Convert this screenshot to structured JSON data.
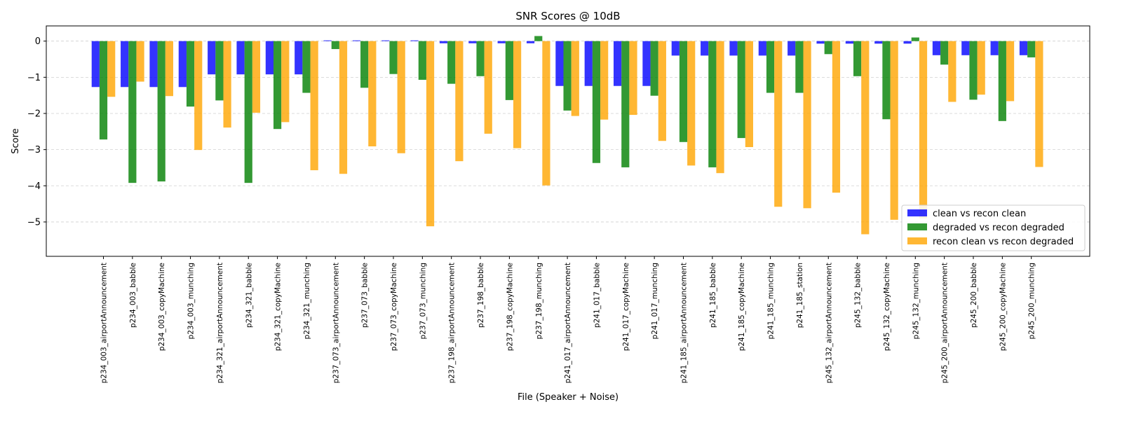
{
  "chart_data": {
    "type": "bar",
    "title": "SNR Scores @ 10dB",
    "xlabel": "File (Speaker + Noise)",
    "ylabel": "Score",
    "ylim": [
      -5.95,
      0.42
    ],
    "yticks": [
      0,
      -1,
      -2,
      -3,
      -4,
      -5
    ],
    "grid": "horizontal dashed",
    "legend_position": "lower right",
    "categories": [
      "p234_003_airportAnnouncement",
      "p234_003_babble",
      "p234_003_copyMachine",
      "p234_003_munching",
      "p234_321_airportAnnouncement",
      "p234_321_babble",
      "p234_321_copyMachine",
      "p234_321_munching",
      "p237_073_airportAnnouncement",
      "p237_073_babble",
      "p237_073_copyMachine",
      "p237_073_munching",
      "p237_198_airportAnnouncement",
      "p237_198_babble",
      "p237_198_copyMachine",
      "p237_198_munching",
      "p241_017_airportAnnouncement",
      "p241_017_babble",
      "p241_017_copyMachine",
      "p241_017_munching",
      "p241_185_airportAnnouncement",
      "p241_185_babble",
      "p241_185_copyMachine",
      "p241_185_munching",
      "p241_185_station",
      "p245_132_airportAnnouncement",
      "p245_132_babble",
      "p245_132_copyMachine",
      "p245_132_munching",
      "p245_200_airportAnnouncement",
      "p245_200_babble",
      "p245_200_copyMachine",
      "p245_200_munching"
    ],
    "series": [
      {
        "name": "clean vs recon clean",
        "color": "#0000ff",
        "values": [
          -1.27,
          -1.27,
          -1.27,
          -1.27,
          -0.92,
          -0.92,
          -0.92,
          -0.92,
          0.02,
          0.02,
          0.02,
          0.02,
          -0.06,
          -0.06,
          -0.06,
          -0.06,
          -1.24,
          -1.24,
          -1.24,
          -1.24,
          -0.4,
          -0.4,
          -0.4,
          -0.4,
          -0.4,
          -0.07,
          -0.07,
          -0.07,
          -0.07,
          -0.39,
          -0.39,
          -0.39,
          -0.39
        ]
      },
      {
        "name": "degraded vs recon degraded",
        "color": "#008000",
        "values": [
          -2.72,
          -3.92,
          -3.88,
          -1.81,
          -1.64,
          -3.92,
          -2.43,
          -1.43,
          -0.22,
          -1.29,
          -0.91,
          -1.07,
          -1.18,
          -0.97,
          -1.63,
          0.14,
          -1.92,
          -3.37,
          -3.49,
          -1.51,
          -2.79,
          -3.49,
          -2.68,
          -1.43,
          -1.43,
          -0.36,
          -0.97,
          -2.16,
          0.1,
          -0.65,
          -1.62,
          -2.21,
          -0.45
        ]
      },
      {
        "name": "recon clean vs recon degraded",
        "color": "#ffa500",
        "values": [
          -1.54,
          -1.12,
          -1.52,
          -3.01,
          -2.39,
          -1.98,
          -2.24,
          -3.57,
          -3.67,
          -2.91,
          -3.1,
          -5.12,
          -3.32,
          -2.56,
          -2.96,
          -3.99,
          -2.07,
          -2.17,
          -2.04,
          -2.76,
          -3.44,
          -3.65,
          -2.93,
          -4.58,
          -4.62,
          -4.19,
          -5.34,
          -4.94,
          -4.9,
          -1.68,
          -1.48,
          -1.66,
          -3.48
        ]
      }
    ]
  }
}
